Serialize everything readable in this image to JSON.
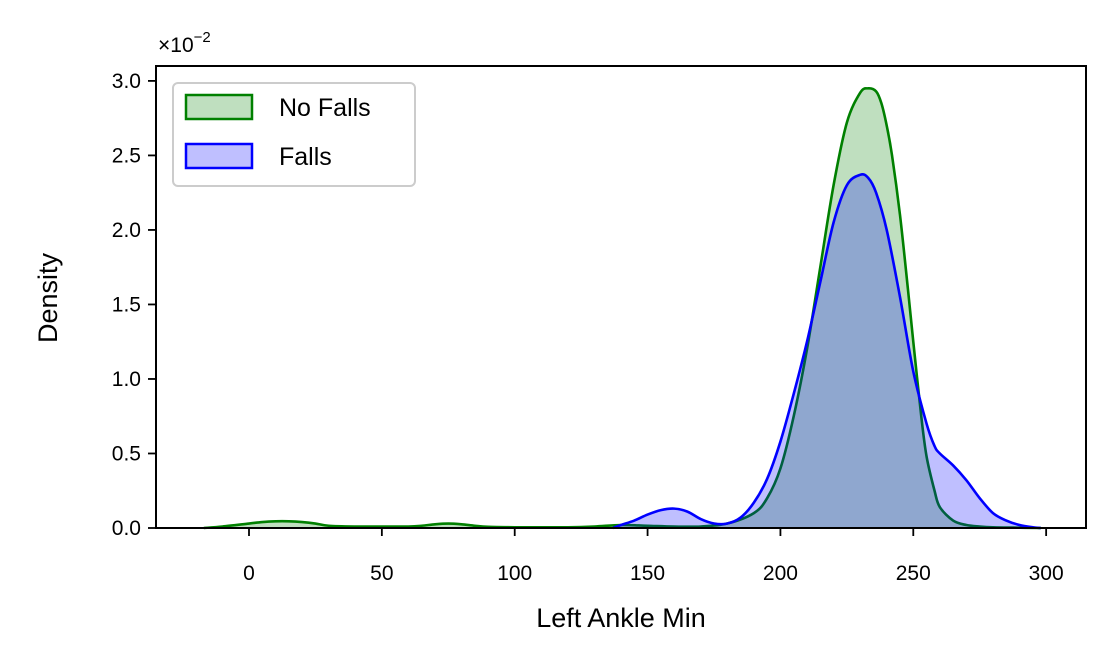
{
  "chart_data": {
    "type": "area",
    "title": "",
    "xlabel": "Left Ankle Min",
    "ylabel": "Density",
    "y_multiplier_label": "×10",
    "y_multiplier_exponent": "−2",
    "xlim": [
      -35,
      315
    ],
    "ylim": [
      0,
      3.1
    ],
    "x_ticks": [
      0,
      50,
      100,
      150,
      200,
      250,
      300
    ],
    "x_tick_labels": [
      "0",
      "50",
      "100",
      "150",
      "200",
      "250",
      "300"
    ],
    "y_ticks": [
      0.0,
      0.5,
      1.0,
      1.5,
      2.0,
      2.5,
      3.0
    ],
    "y_tick_labels": [
      "0.0",
      "0.5",
      "1.0",
      "1.5",
      "2.0",
      "2.5",
      "3.0"
    ],
    "grid": false,
    "legend_position": "top-left",
    "series": [
      {
        "name": "No Falls",
        "line_color": "#008000",
        "fill_color": "#008000",
        "fill_opacity": 0.25,
        "x": [
          -17,
          -10,
          0,
          5,
          10,
          15,
          20,
          25,
          30,
          40,
          50,
          60,
          65,
          70,
          75,
          80,
          85,
          90,
          100,
          110,
          120,
          130,
          140,
          150,
          160,
          170,
          180,
          190,
          195,
          200,
          205,
          210,
          215,
          220,
          225,
          230,
          233,
          236,
          238,
          240,
          242,
          245,
          248,
          250,
          253,
          255,
          258,
          260,
          265,
          270,
          275,
          280,
          290,
          298
        ],
        "y": [
          0,
          0.01,
          0.03,
          0.04,
          0.045,
          0.045,
          0.04,
          0.03,
          0.015,
          0.01,
          0.01,
          0.01,
          0.015,
          0.025,
          0.03,
          0.025,
          0.015,
          0.008,
          0.005,
          0.005,
          0.005,
          0.01,
          0.02,
          0.015,
          0.01,
          0.01,
          0.03,
          0.1,
          0.2,
          0.4,
          0.75,
          1.2,
          1.75,
          2.3,
          2.72,
          2.92,
          2.95,
          2.93,
          2.85,
          2.7,
          2.5,
          2.1,
          1.6,
          1.25,
          0.75,
          0.48,
          0.25,
          0.14,
          0.05,
          0.02,
          0.01,
          0.005,
          0.002,
          0
        ]
      },
      {
        "name": "Falls",
        "line_color": "#0000ff",
        "fill_color": "#0000ff",
        "fill_opacity": 0.25,
        "x": [
          137,
          140,
          145,
          150,
          155,
          160,
          165,
          170,
          175,
          180,
          185,
          190,
          195,
          200,
          205,
          210,
          215,
          220,
          225,
          230,
          233,
          236,
          240,
          245,
          250,
          255,
          258,
          260,
          265,
          270,
          275,
          280,
          285,
          290,
          295,
          298
        ],
        "y": [
          0,
          0.02,
          0.05,
          0.09,
          0.12,
          0.13,
          0.11,
          0.06,
          0.03,
          0.03,
          0.07,
          0.17,
          0.33,
          0.58,
          0.9,
          1.25,
          1.65,
          2.05,
          2.3,
          2.37,
          2.35,
          2.25,
          2.0,
          1.55,
          1.05,
          0.7,
          0.55,
          0.5,
          0.42,
          0.32,
          0.2,
          0.1,
          0.05,
          0.02,
          0.005,
          0
        ]
      }
    ]
  }
}
